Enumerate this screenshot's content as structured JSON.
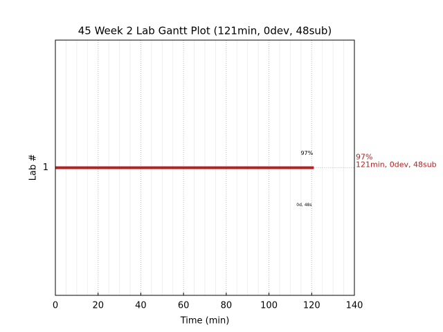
{
  "chart_data": {
    "type": "gantt",
    "title": "45 Week 2 Lab Gantt Plot (121min, 0dev, 48sub)",
    "xlabel": "Time (min)",
    "ylabel": "Lab #",
    "categories": [
      "1"
    ],
    "starts": [
      0
    ],
    "values": [
      121
    ],
    "color": "#b22222",
    "xlim": [
      0,
      140
    ],
    "xticks": [
      0,
      20,
      40,
      60,
      80,
      100,
      120,
      140
    ],
    "xminorticks": [
      5,
      10,
      15,
      25,
      30,
      35,
      45,
      50,
      55,
      65,
      70,
      75,
      85,
      90,
      95,
      105,
      110,
      115,
      125,
      130,
      135
    ],
    "grid": true,
    "bar_label_top": "97%",
    "bar_label_bottom": "0d, 48s",
    "side_labels": [
      "97%",
      "121min, 0dev, 48sub"
    ]
  }
}
